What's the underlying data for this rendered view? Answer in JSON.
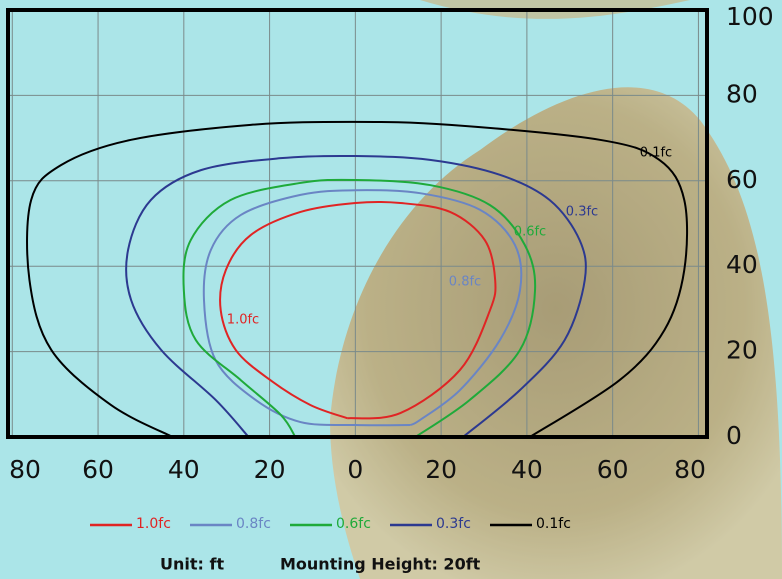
{
  "chart_data": {
    "type": "contour",
    "xlim": [
      -81,
      82
    ],
    "ylim": [
      0,
      100
    ],
    "xticks": [
      {
        "value": -80,
        "label": "80"
      },
      {
        "value": -60,
        "label": "60"
      },
      {
        "value": -40,
        "label": "40"
      },
      {
        "value": -20,
        "label": "20"
      },
      0,
      20,
      40,
      60,
      80
    ],
    "yticks": [
      0,
      20,
      40,
      60,
      80,
      100
    ],
    "grid": true,
    "series": [
      {
        "name": "1.0fc",
        "color": "#e02424",
        "x": [
          -1.9,
          10.5,
          24.4,
          31.4,
          32.6,
          30.2,
          22.1,
          10.5,
          0,
          -12.8,
          -24.4,
          -30.2,
          -31.4,
          -27.9,
          -19.8,
          -10.5,
          -1.9
        ],
        "y": [
          4.4,
          5.6,
          15.7,
          29.7,
          36.8,
          46.1,
          52.7,
          54.8,
          54.8,
          52.7,
          47.3,
          39.1,
          29.7,
          20.4,
          13.3,
          7.5,
          4.4
        ]
      },
      {
        "name": "0.8fc",
        "color": "#6a85c4",
        "x": [
          12.8,
          15.1,
          24.4,
          33.7,
          38.4,
          37.2,
          29.1,
          15.1,
          0,
          -12.8,
          -26.7,
          -33.7,
          -35.3,
          -32.6,
          -23.3,
          -12.8,
          0,
          12.8
        ],
        "y": [
          2.8,
          4,
          11,
          22.7,
          34.4,
          45,
          53.2,
          57.1,
          57.8,
          56.7,
          52,
          43.8,
          32.1,
          18,
          8.7,
          3.5,
          2.8,
          2.8
        ]
      },
      {
        "name": "0.6fc",
        "color": "#1faa3a",
        "x": [
          -14,
          -17.4,
          -26.7,
          -37.2,
          -40,
          -38.4,
          -29.1,
          -12.8,
          0,
          17.4,
          31.4,
          39.5,
          41.9,
          38.4,
          26.7,
          14
        ],
        "y": [
          0,
          5.2,
          13.3,
          22.7,
          34.4,
          46.1,
          55.5,
          59.5,
          60.2,
          59,
          54.3,
          45,
          34.4,
          20.4,
          8.7,
          0
        ]
      },
      {
        "name": "0.3fc",
        "color": "#2c3990",
        "x": [
          -24.9,
          -32.6,
          -45.3,
          -52.3,
          -53,
          -47.7,
          -36,
          -17.4,
          0,
          17.4,
          33.7,
          45.3,
          52.3,
          53.5,
          48.8,
          38.4,
          25.1
        ],
        "y": [
          0,
          8.7,
          20.4,
          32.1,
          43.8,
          55.5,
          62.5,
          65.3,
          65.8,
          64.9,
          61.4,
          55.5,
          46.1,
          36.8,
          22.7,
          11,
          0
        ]
      },
      {
        "name": "0.1fc",
        "color": "#000000",
        "x": [
          -42.6,
          -57,
          -70.9,
          -76,
          -75.6,
          -68.6,
          -52.3,
          -24.4,
          -0.7,
          22.1,
          57,
          70.9,
          76.7,
          76.7,
          72.1,
          61.6,
          40.7
        ],
        "y": [
          0,
          7.5,
          20.4,
          36.8,
          55.5,
          63.7,
          69.6,
          73.1,
          73.8,
          73.1,
          69.6,
          64.9,
          55.5,
          39.1,
          25.1,
          13.3,
          0
        ]
      }
    ],
    "annotations": [
      "Unit: ft",
      "Mounting Height: 20ft"
    ]
  }
}
